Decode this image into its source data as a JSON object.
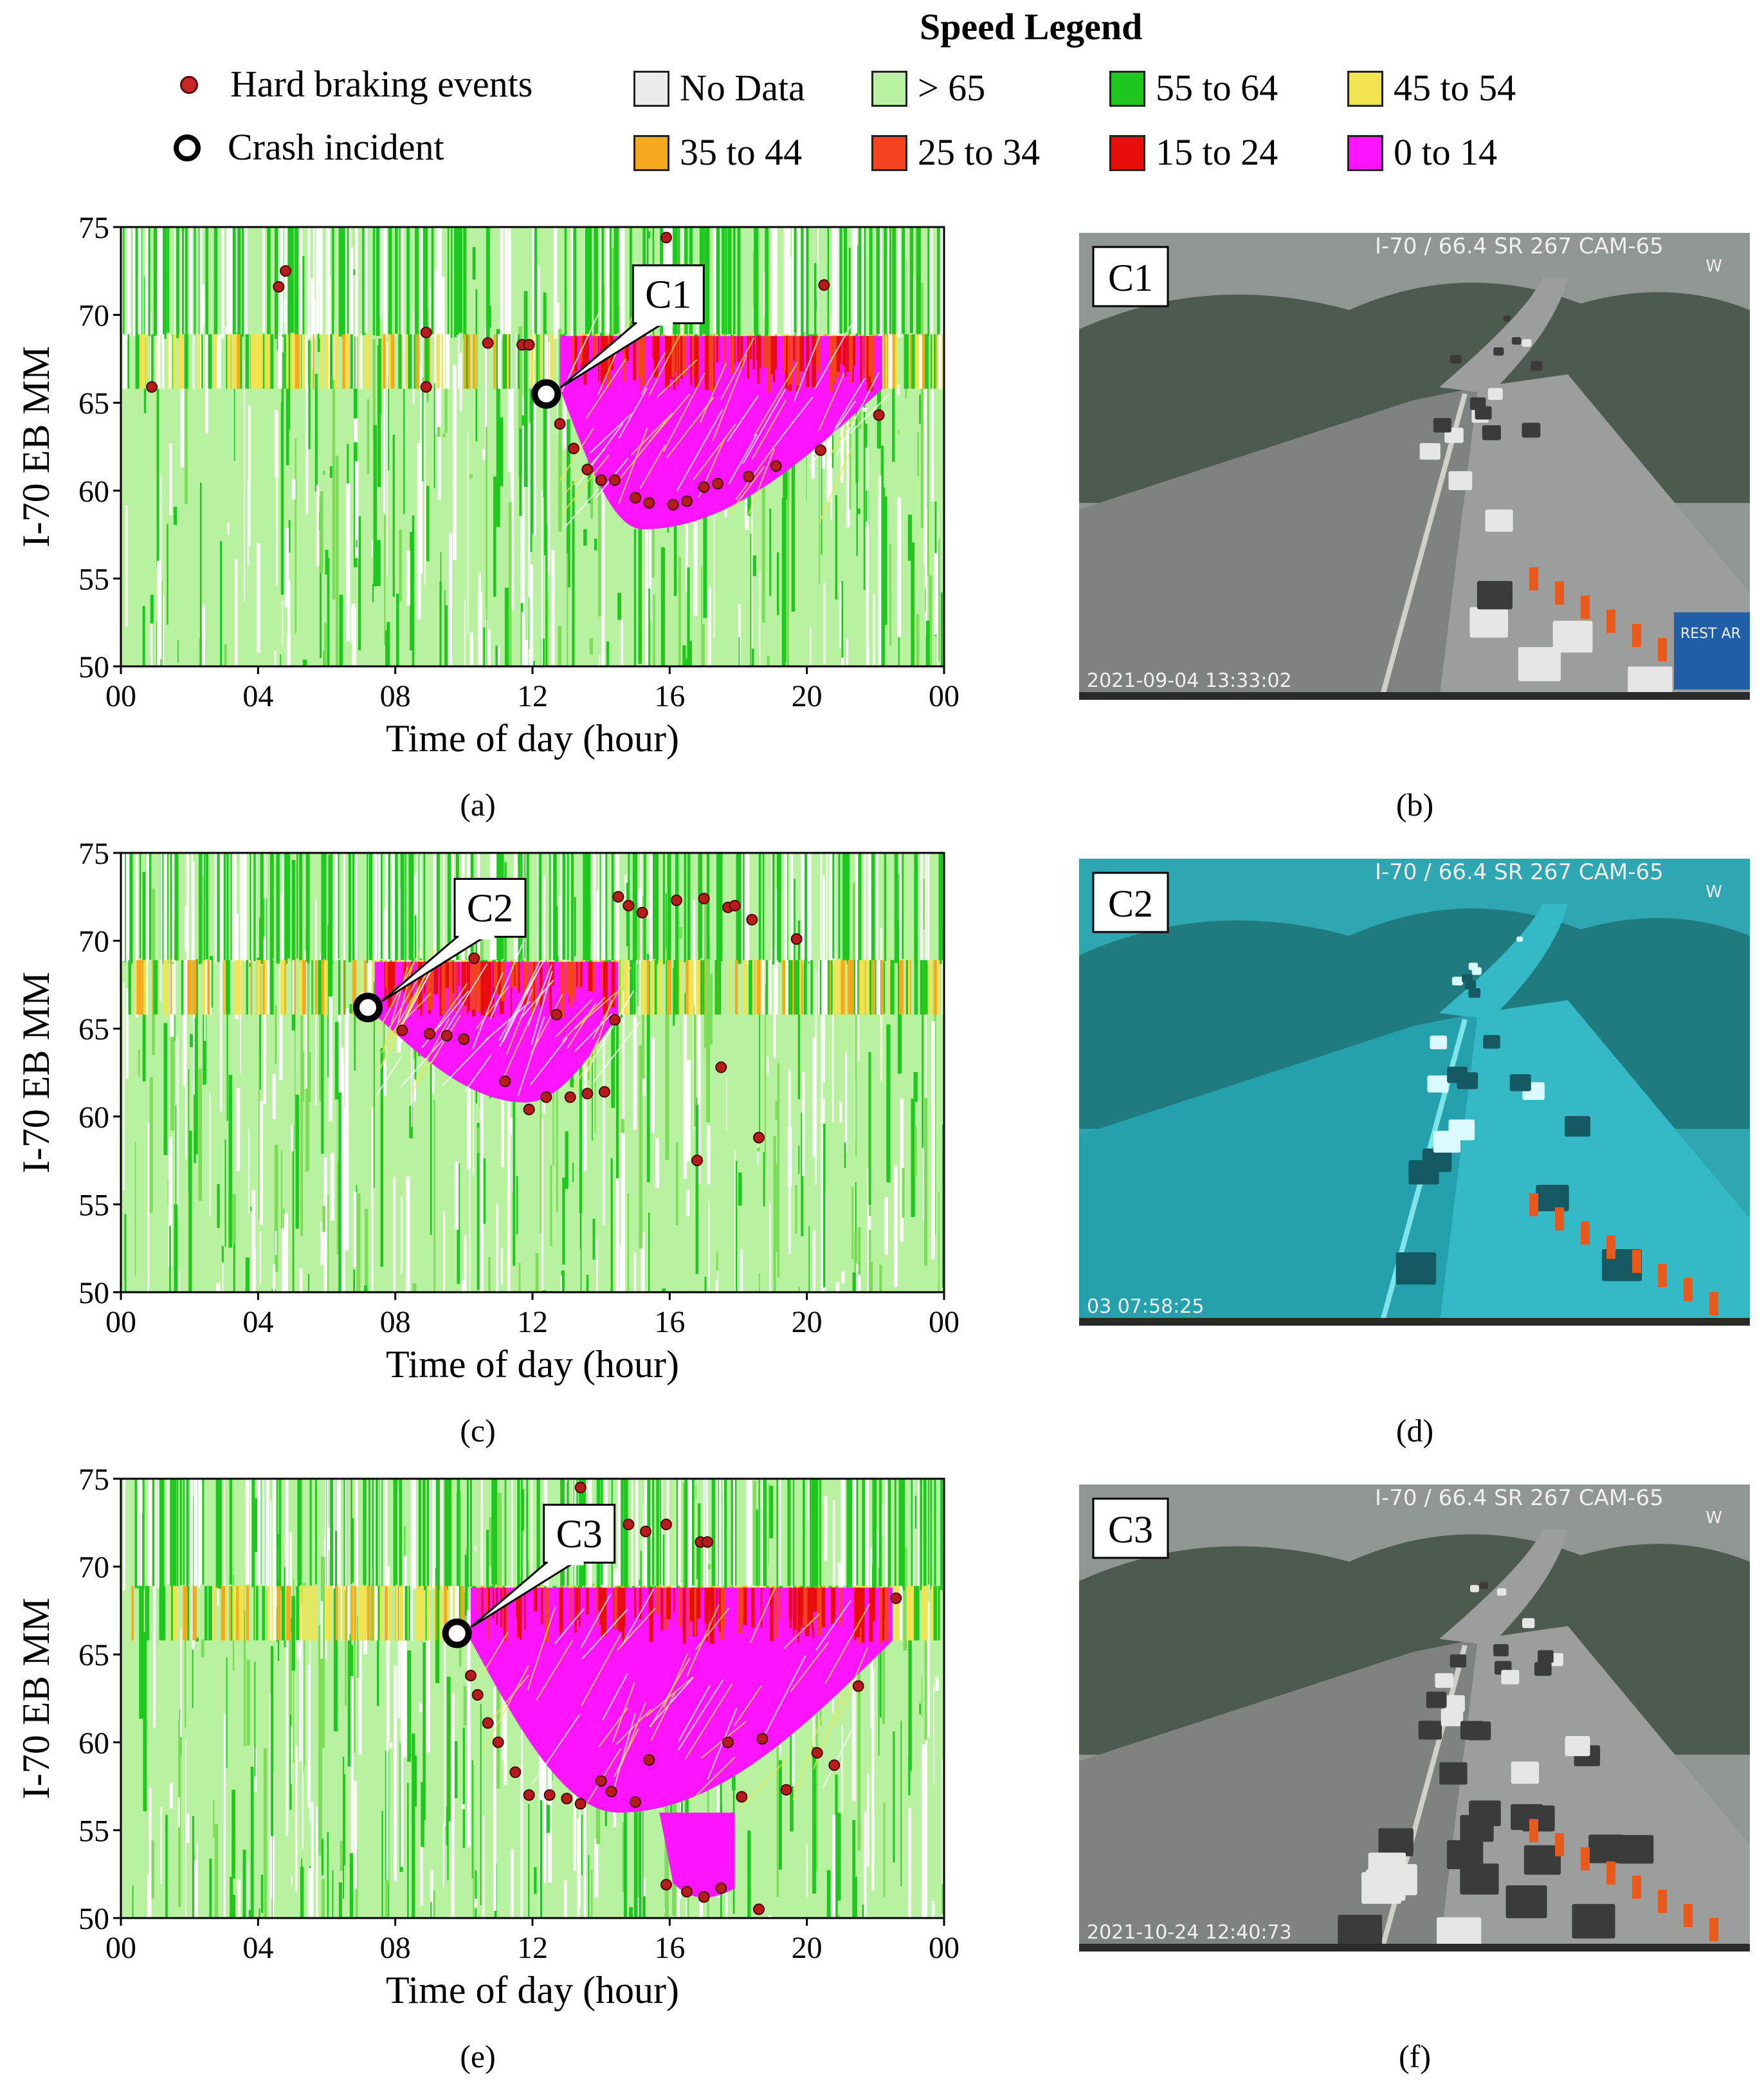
{
  "legend": {
    "title": "Speed Legend",
    "markers": [
      {
        "label": "Hard braking events",
        "icon": "dot-icon",
        "color": "#c62828"
      },
      {
        "label": "Crash incident",
        "icon": "ring-icon",
        "color": "#000000"
      }
    ],
    "speed_bins": [
      {
        "label": "No Data",
        "color": "#ececec"
      },
      {
        "label": "> 65",
        "color": "#b8f2a0"
      },
      {
        "label": "55 to 64",
        "color": "#1fc81f"
      },
      {
        "label": "45 to 54",
        "color": "#f2e450"
      },
      {
        "label": "35 to 44",
        "color": "#f5aa1e"
      },
      {
        "label": "25 to 34",
        "color": "#f2421e"
      },
      {
        "label": "15 to 24",
        "color": "#e80d0d"
      },
      {
        "label": "0 to 14",
        "color": "#ff14ff"
      }
    ]
  },
  "chart_data": [
    {
      "type": "heatmap",
      "panel": "(a)",
      "ylabel": "I-70 EB MM",
      "xlabel": "Time of day (hour)",
      "xlim": [
        0,
        24
      ],
      "ylim": [
        50,
        75
      ],
      "xticks": [
        "00",
        "04",
        "08",
        "12",
        "16",
        "20",
        "00"
      ],
      "yticks": [
        50,
        55,
        60,
        65,
        70,
        75
      ],
      "crash": {
        "label": "C1",
        "hour": 12.4,
        "mm": 65.5
      },
      "congestion": {
        "start_hour": 12.8,
        "end_hour": 22.2,
        "top_mm": 68.8,
        "bottom_mm": 57.8,
        "min_hour": 15.2
      },
      "hard_braking_events": [
        [
          0.9,
          65.9
        ],
        [
          4.6,
          71.6
        ],
        [
          4.8,
          72.5
        ],
        [
          8.9,
          69.0
        ],
        [
          8.9,
          65.9
        ],
        [
          10.7,
          68.4
        ],
        [
          11.7,
          68.3
        ],
        [
          11.9,
          68.3
        ],
        [
          12.8,
          63.8
        ],
        [
          13.2,
          62.4
        ],
        [
          13.6,
          61.2
        ],
        [
          14.0,
          60.6
        ],
        [
          14.4,
          60.6
        ],
        [
          15.0,
          59.6
        ],
        [
          15.4,
          59.3
        ],
        [
          15.9,
          74.4
        ],
        [
          16.1,
          59.2
        ],
        [
          16.5,
          59.4
        ],
        [
          17.0,
          60.2
        ],
        [
          17.4,
          60.4
        ],
        [
          18.3,
          60.8
        ],
        [
          19.1,
          61.4
        ],
        [
          20.4,
          62.3
        ],
        [
          20.5,
          71.7
        ],
        [
          22.1,
          64.3
        ]
      ]
    },
    {
      "type": "heatmap",
      "panel": "(c)",
      "ylabel": "I-70 EB MM",
      "xlabel": "Time of day (hour)",
      "xlim": [
        0,
        24
      ],
      "ylim": [
        50,
        75
      ],
      "xticks": [
        "00",
        "04",
        "08",
        "12",
        "16",
        "20",
        "00"
      ],
      "yticks": [
        50,
        55,
        60,
        65,
        70,
        75
      ],
      "crash": {
        "label": "C2",
        "hour": 7.2,
        "mm": 66.2
      },
      "congestion": {
        "start_hour": 7.4,
        "end_hour": 14.5,
        "top_mm": 68.8,
        "bottom_mm": 60.8,
        "min_hour": 11.8
      },
      "hard_braking_events": [
        [
          8.2,
          64.9
        ],
        [
          9.0,
          64.7
        ],
        [
          9.5,
          64.6
        ],
        [
          10.0,
          64.4
        ],
        [
          10.3,
          69.0
        ],
        [
          11.2,
          62.0
        ],
        [
          11.9,
          60.4
        ],
        [
          12.4,
          61.1
        ],
        [
          12.7,
          65.8
        ],
        [
          13.1,
          61.1
        ],
        [
          13.6,
          61.3
        ],
        [
          14.1,
          61.4
        ],
        [
          14.4,
          65.5
        ],
        [
          14.5,
          72.5
        ],
        [
          14.8,
          72.0
        ],
        [
          15.2,
          71.6
        ],
        [
          16.2,
          72.3
        ],
        [
          16.8,
          57.5
        ],
        [
          17.0,
          72.4
        ],
        [
          17.5,
          62.8
        ],
        [
          17.7,
          71.9
        ],
        [
          17.9,
          72.0
        ],
        [
          18.4,
          71.2
        ],
        [
          18.6,
          58.8
        ],
        [
          19.7,
          70.1
        ]
      ]
    },
    {
      "type": "heatmap",
      "panel": "(e)",
      "ylabel": "I-70 EB MM",
      "xlabel": "Time of day (hour)",
      "xlim": [
        0,
        24
      ],
      "ylim": [
        50,
        75
      ],
      "xticks": [
        "00",
        "04",
        "08",
        "12",
        "16",
        "20",
        "00"
      ],
      "yticks": [
        50,
        55,
        60,
        65,
        70,
        75
      ],
      "crash": {
        "label": "C3",
        "hour": 9.8,
        "mm": 66.2
      },
      "congestion": {
        "start_hour": 10.2,
        "end_hour": 22.5,
        "top_mm": 68.8,
        "bottom_mm": 56.0,
        "min_hour": 14.5
      },
      "secondary_queue": {
        "start_hour": 15.7,
        "end_hour": 17.9,
        "top_mm": 56.0,
        "bottom_mm": 50.5
      },
      "hard_braking_events": [
        [
          10.2,
          63.8
        ],
        [
          10.4,
          62.7
        ],
        [
          10.7,
          61.1
        ],
        [
          11.0,
          60.0
        ],
        [
          11.5,
          58.3
        ],
        [
          11.9,
          57.0
        ],
        [
          12.5,
          57.0
        ],
        [
          13.0,
          56.8
        ],
        [
          13.4,
          56.5
        ],
        [
          13.4,
          74.5
        ],
        [
          14.0,
          57.8
        ],
        [
          14.3,
          57.2
        ],
        [
          14.8,
          72.4
        ],
        [
          15.0,
          56.6
        ],
        [
          15.3,
          72.0
        ],
        [
          15.4,
          59.0
        ],
        [
          15.9,
          72.4
        ],
        [
          15.9,
          51.9
        ],
        [
          16.5,
          51.5
        ],
        [
          16.9,
          71.4
        ],
        [
          17.1,
          71.4
        ],
        [
          17.0,
          51.2
        ],
        [
          17.5,
          51.7
        ],
        [
          17.7,
          60.0
        ],
        [
          18.1,
          56.9
        ],
        [
          18.6,
          50.5
        ],
        [
          18.7,
          60.2
        ],
        [
          19.4,
          57.3
        ],
        [
          20.3,
          59.4
        ],
        [
          20.8,
          58.7
        ],
        [
          21.5,
          63.2
        ],
        [
          22.6,
          68.2
        ]
      ]
    }
  ],
  "panels": [
    {
      "caption": "(a)",
      "letter": "a"
    },
    {
      "caption": "(b)",
      "letter": "b"
    },
    {
      "caption": "(c)",
      "letter": "c"
    },
    {
      "caption": "(d)",
      "letter": "d"
    },
    {
      "caption": "(e)",
      "letter": "e"
    },
    {
      "caption": "(f)",
      "letter": "f"
    }
  ],
  "cameras": [
    {
      "label": "C1",
      "overlay": "I-70 / 66.4 SR 267 CAM-65",
      "dir": "W",
      "timestamp": "2021-09-04  13:33:02",
      "sign": "REST AR",
      "tone": "gray"
    },
    {
      "label": "C2",
      "overlay": "I-70 / 66.4 SR 267 CAM-65",
      "dir": "W",
      "timestamp": "03  07:58:25",
      "sign": "",
      "tone": "cyan"
    },
    {
      "label": "C3",
      "overlay": "I-70 / 66.4 SR 267 CAM-65",
      "dir": "W",
      "timestamp": "2021-10-24  12:40:73",
      "sign": "",
      "tone": "gray"
    }
  ]
}
